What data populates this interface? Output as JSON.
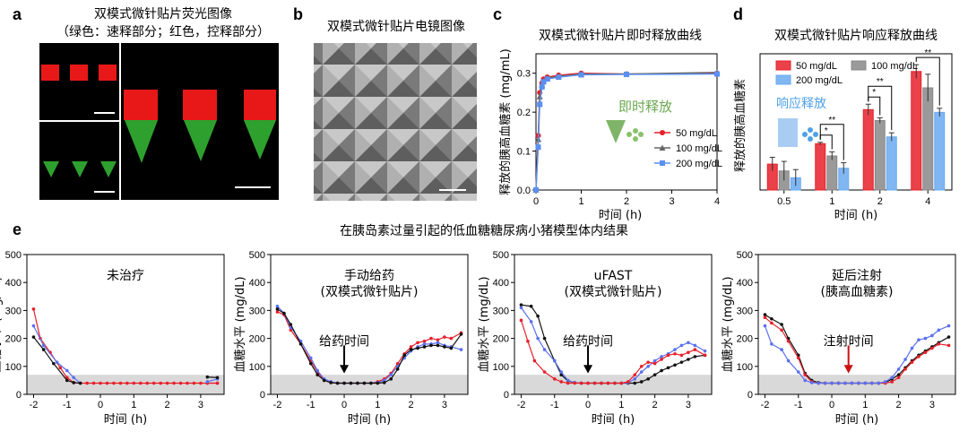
{
  "panel_a": {
    "label": "a",
    "title_line1": "双模式微针贴片荧光图像",
    "title_line2": "（绿色：速释部分；红色，控释部分）"
  },
  "panel_b": {
    "label": "b",
    "title": "双模式微针贴片电镜图像"
  },
  "panel_e": {
    "label": "e",
    "title": "在胰岛素过量引起的低血糖糖尿病小猪模型体内结果"
  },
  "colors": {
    "red": "#e8202a",
    "gray": "#666666",
    "blue": "#5b8ff0",
    "green_annotation": "#6aa84f",
    "blue_annotation": "#4ea1e8",
    "shade": "#d9d9d9",
    "arrow_red": "#cc1111"
  },
  "chart_data": [
    {
      "id": "c",
      "panel_label": "c",
      "type": "line",
      "title": "双模式微针贴片即时释放曲线",
      "xlabel": "时间 (h)",
      "ylabel": "释放的胰高血糖素 (mg/mL)",
      "xlim": [
        0,
        4
      ],
      "ylim": [
        0,
        0.35
      ],
      "xticks": [
        0,
        1,
        2,
        3,
        4
      ],
      "yticks": [
        0.0,
        0.1,
        0.2,
        0.3
      ],
      "ytick_labels": [
        "0.0",
        "0.1",
        "0.2",
        "0.3"
      ],
      "x": [
        0,
        0.05,
        0.083,
        0.133,
        0.167,
        0.25,
        0.5,
        1,
        2,
        4
      ],
      "series": [
        {
          "name": "50 mg/dL",
          "color": "#e8202a",
          "marker": "circle",
          "values": [
            0.0,
            0.14,
            0.25,
            0.275,
            0.285,
            0.29,
            0.295,
            0.3,
            0.298,
            0.3
          ]
        },
        {
          "name": "100 mg/dL",
          "color": "#666666",
          "marker": "triangle",
          "values": [
            0.0,
            0.13,
            0.24,
            0.27,
            0.28,
            0.288,
            0.292,
            0.298,
            0.298,
            0.302
          ]
        },
        {
          "name": "200 mg/dL",
          "color": "#5b8ff0",
          "marker": "square",
          "values": [
            0.0,
            0.11,
            0.22,
            0.265,
            0.278,
            0.285,
            0.29,
            0.296,
            0.297,
            0.298
          ]
        }
      ],
      "annotation": "即时释放",
      "legend": "right"
    },
    {
      "id": "d",
      "panel_label": "d",
      "type": "bar",
      "title": "双模式微针贴片响应释放曲线",
      "xlabel": "时间 (h)",
      "ylabel": "释放的胰高血糖素",
      "categories": [
        "0.5",
        "1",
        "2",
        "4"
      ],
      "ylim": [
        0,
        0.5
      ],
      "series": [
        {
          "name": "50 mg/dL",
          "color": "#e8202a",
          "values": [
            0.095,
            0.17,
            0.295,
            0.435
          ],
          "errors": [
            0.025,
            0.005,
            0.02,
            0.025
          ]
        },
        {
          "name": "100 mg/dL",
          "color": "#888888",
          "values": [
            0.07,
            0.125,
            0.255,
            0.375
          ],
          "errors": [
            0.035,
            0.015,
            0.01,
            0.05
          ]
        },
        {
          "name": "200 mg/dL",
          "color": "#6aaaf0",
          "values": [
            0.045,
            0.08,
            0.195,
            0.285
          ],
          "errors": [
            0.03,
            0.02,
            0.015,
            0.015
          ]
        }
      ],
      "significance": [
        {
          "category": "1",
          "pairs": [
            [
              "50 mg/dL",
              "100 mg/dL",
              "*"
            ],
            [
              "50 mg/dL",
              "200 mg/dL",
              "**"
            ]
          ]
        },
        {
          "category": "2",
          "pairs": [
            [
              "50 mg/dL",
              "100 mg/dL",
              "*"
            ],
            [
              "50 mg/dL",
              "200 mg/dL",
              "**"
            ]
          ]
        },
        {
          "category": "4",
          "pairs": [
            [
              "50 mg/dL",
              "200 mg/dL",
              "**"
            ]
          ]
        }
      ],
      "annotation": "响应释放",
      "legend": "top"
    },
    {
      "id": "e1",
      "type": "line",
      "title_line1": "未治疗",
      "title_line2": "",
      "arrow_label": "",
      "arrow_x": null,
      "xlabel": "时间 (h)",
      "ylabel": "血糖水平 (mg/dL)",
      "xlim": [
        -2.2,
        3.7
      ],
      "ylim": [
        0,
        500
      ],
      "xticks": [
        -2,
        -1,
        0,
        1,
        2,
        3
      ],
      "yticks": [
        0,
        100,
        200,
        300,
        400,
        500
      ],
      "shade_range": [
        0,
        70
      ],
      "series": [
        {
          "name": "red",
          "color": "#e8202a",
          "x": [
            -2.0,
            -1.8,
            -1.5,
            -1.2,
            -1.0,
            -0.8,
            -0.6,
            -0.4,
            -0.2,
            0.0,
            0.2,
            0.4,
            0.6,
            0.8,
            1.0,
            1.2,
            1.4,
            1.6,
            1.8,
            2.0,
            2.2,
            2.4,
            2.6,
            2.8,
            3.0,
            3.2,
            3.5
          ],
          "y": [
            305,
            200,
            150,
            95,
            60,
            42,
            40,
            40,
            40,
            40,
            40,
            40,
            40,
            40,
            40,
            40,
            40,
            40,
            40,
            40,
            40,
            40,
            40,
            40,
            40,
            40,
            40
          ]
        },
        {
          "name": "blue",
          "color": "#5b6ff0",
          "x": [
            -2.0,
            -1.7,
            -1.3,
            -1.0,
            -0.8,
            -0.6
          ],
          "y": [
            245,
            175,
            115,
            85,
            60,
            40
          ]
        },
        {
          "name": "black",
          "color": "#111111",
          "x": [
            -2.0,
            -1.7,
            -1.4,
            -1.0,
            -0.8,
            -0.6
          ],
          "y": [
            205,
            160,
            110,
            50,
            42,
            40
          ]
        },
        {
          "name": "red-tail",
          "color": "#e8202a",
          "x": [
            3.2,
            3.5
          ],
          "y": [
            40,
            40
          ]
        },
        {
          "name": "blue-tail",
          "color": "#5b6ff0",
          "x": [
            3.2,
            3.5
          ],
          "y": [
            45,
            55
          ]
        },
        {
          "name": "black-tail",
          "color": "#111111",
          "x": [
            3.2,
            3.5
          ],
          "y": [
            62,
            60
          ]
        }
      ]
    },
    {
      "id": "e2",
      "type": "line",
      "title_line1": "手动给药",
      "title_line2": "(双模式微针贴片)",
      "arrow_label": "给药时间",
      "arrow_x": 0,
      "xlabel": "时间 (h)",
      "ylabel": "血糖水平 (mg/dL)",
      "xlim": [
        -2.2,
        3.7
      ],
      "ylim": [
        0,
        500
      ],
      "xticks": [
        -2,
        -1,
        0,
        1,
        2,
        3
      ],
      "yticks": [
        0,
        100,
        200,
        300,
        400,
        500
      ],
      "shade_range": [
        0,
        70
      ],
      "series": [
        {
          "name": "red",
          "color": "#e8202a",
          "x": [
            -2.0,
            -1.8,
            -1.6,
            -1.3,
            -1.0,
            -0.8,
            -0.6,
            -0.4,
            -0.2,
            0.0,
            0.2,
            0.4,
            0.6,
            0.8,
            1.0,
            1.2,
            1.4,
            1.6,
            1.8,
            2.0,
            2.2,
            2.4,
            2.6,
            2.8,
            3.0,
            3.2,
            3.5
          ],
          "y": [
            295,
            285,
            230,
            180,
            120,
            80,
            50,
            42,
            40,
            40,
            40,
            40,
            40,
            40,
            45,
            55,
            75,
            110,
            145,
            170,
            185,
            190,
            200,
            195,
            205,
            200,
            220
          ]
        },
        {
          "name": "blue",
          "color": "#5b6ff0",
          "x": [
            -2.0,
            -1.8,
            -1.6,
            -1.3,
            -1.0,
            -0.8,
            -0.6,
            -0.4,
            -0.2,
            0.0,
            0.2,
            0.4,
            0.6,
            0.8,
            1.0,
            1.2,
            1.4,
            1.6,
            1.8,
            2.0,
            2.2,
            2.4,
            2.6,
            2.8,
            3.0,
            3.2,
            3.5
          ],
          "y": [
            315,
            290,
            240,
            190,
            130,
            85,
            55,
            45,
            40,
            40,
            40,
            40,
            40,
            40,
            42,
            50,
            70,
            100,
            130,
            155,
            170,
            180,
            180,
            185,
            175,
            170,
            160
          ]
        },
        {
          "name": "black",
          "color": "#111111",
          "x": [
            -2.0,
            -1.8,
            -1.6,
            -1.3,
            -1.0,
            -0.8,
            -0.6,
            -0.4,
            -0.2,
            0.0,
            0.2,
            0.4,
            0.6,
            0.8,
            1.0,
            1.2,
            1.4,
            1.6,
            1.8,
            2.0,
            2.2,
            2.4,
            2.6,
            2.8,
            3.0,
            3.2,
            3.5
          ],
          "y": [
            305,
            290,
            250,
            180,
            110,
            70,
            50,
            42,
            40,
            40,
            40,
            40,
            40,
            40,
            40,
            42,
            55,
            90,
            140,
            160,
            165,
            170,
            175,
            175,
            170,
            165,
            215
          ]
        }
      ]
    },
    {
      "id": "e3",
      "type": "line",
      "title_line1": "uFAST",
      "title_line2": "(双模式微针贴片)",
      "arrow_label": "给药时间",
      "arrow_x": 0,
      "xlabel": "时间 (h)",
      "ylabel": "血糖水平 (mg/dL)",
      "xlim": [
        -2.2,
        3.7
      ],
      "ylim": [
        0,
        500
      ],
      "xticks": [
        -2,
        -1,
        0,
        1,
        2,
        3
      ],
      "yticks": [
        0,
        100,
        200,
        300,
        400,
        500
      ],
      "shade_range": [
        0,
        70
      ],
      "series": [
        {
          "name": "black",
          "color": "#111111",
          "x": [
            -2.0,
            -1.7,
            -1.5,
            -1.3,
            -1.0,
            -0.8,
            -0.6,
            -0.4,
            -0.2,
            0.0,
            0.2,
            0.4,
            0.6,
            0.8,
            1.0,
            1.2,
            1.4,
            1.6,
            1.8,
            2.0,
            2.2,
            2.4,
            2.6,
            2.8,
            3.0,
            3.2,
            3.5
          ],
          "y": [
            320,
            315,
            280,
            200,
            120,
            70,
            48,
            42,
            40,
            40,
            40,
            40,
            40,
            40,
            40,
            40,
            40,
            45,
            55,
            70,
            85,
            95,
            105,
            115,
            125,
            135,
            140
          ]
        },
        {
          "name": "blue",
          "color": "#5b6ff0",
          "x": [
            -2.0,
            -1.7,
            -1.5,
            -1.3,
            -1.0,
            -0.8,
            -0.6,
            -0.4,
            -0.2,
            0.0,
            0.2,
            0.4,
            0.6,
            0.8,
            1.0,
            1.2,
            1.4,
            1.6,
            1.8,
            2.0,
            2.2,
            2.4,
            2.6,
            2.8,
            3.0,
            3.2,
            3.5
          ],
          "y": [
            310,
            260,
            200,
            160,
            120,
            80,
            50,
            42,
            40,
            40,
            40,
            40,
            40,
            40,
            40,
            42,
            55,
            80,
            100,
            120,
            135,
            145,
            160,
            175,
            185,
            175,
            155
          ]
        },
        {
          "name": "red",
          "color": "#e8202a",
          "x": [
            -2.0,
            -1.8,
            -1.6,
            -1.3,
            -1.0,
            -0.8,
            -0.6,
            -0.4,
            -0.2,
            0.0,
            0.2,
            0.4,
            0.6,
            0.8,
            1.0,
            1.2,
            1.4,
            1.6,
            1.8,
            2.0,
            2.2,
            2.4,
            2.6,
            2.8,
            3.0,
            3.2,
            3.5
          ],
          "y": [
            265,
            190,
            120,
            80,
            55,
            45,
            40,
            40,
            40,
            40,
            40,
            40,
            40,
            40,
            40,
            45,
            70,
            100,
            115,
            110,
            125,
            140,
            145,
            140,
            150,
            160,
            140
          ]
        }
      ]
    },
    {
      "id": "e4",
      "type": "line",
      "title_line1": "延后注射",
      "title_line2": "(胰高血糖素)",
      "arrow_label": "注射时间",
      "arrow_x": 0.5,
      "arrow_color": "#cc1111",
      "xlabel": "时间 (h)",
      "ylabel": "血糖水平 (mg/dL)",
      "xlim": [
        -2.2,
        3.7
      ],
      "ylim": [
        0,
        500
      ],
      "xticks": [
        -2,
        -1,
        0,
        1,
        2,
        3
      ],
      "yticks": [
        0,
        100,
        200,
        300,
        400,
        500
      ],
      "shade_range": [
        0,
        70
      ],
      "series": [
        {
          "name": "black",
          "color": "#111111",
          "x": [
            -2.0,
            -1.8,
            -1.5,
            -1.3,
            -1.0,
            -0.8,
            -0.6,
            -0.4,
            -0.2,
            0.0,
            0.2,
            0.4,
            0.6,
            0.8,
            1.0,
            1.2,
            1.4,
            1.6,
            1.8,
            2.0,
            2.2,
            2.4,
            2.6,
            2.8,
            3.0,
            3.2,
            3.5
          ],
          "y": [
            285,
            270,
            250,
            200,
            140,
            75,
            50,
            42,
            40,
            40,
            40,
            40,
            40,
            40,
            40,
            40,
            40,
            42,
            55,
            70,
            95,
            120,
            140,
            155,
            170,
            185,
            205
          ]
        },
        {
          "name": "red",
          "color": "#e8202a",
          "x": [
            -2.0,
            -1.8,
            -1.5,
            -1.3,
            -1.0,
            -0.8,
            -0.6,
            -0.4,
            -0.2,
            0.0,
            0.2,
            0.4,
            0.6,
            0.8,
            1.0,
            1.2,
            1.4,
            1.6,
            1.8,
            2.0,
            2.2,
            2.4,
            2.6,
            2.8,
            3.0,
            3.2,
            3.5
          ],
          "y": [
            275,
            255,
            230,
            190,
            130,
            70,
            45,
            40,
            40,
            40,
            40,
            40,
            40,
            40,
            40,
            40,
            40,
            40,
            45,
            60,
            90,
            115,
            135,
            150,
            165,
            180,
            175
          ]
        },
        {
          "name": "blue",
          "color": "#5b6ff0",
          "x": [
            -2.0,
            -1.8,
            -1.5,
            -1.3,
            -1.0,
            -0.8,
            -0.6,
            -0.4,
            -0.2,
            0.0,
            0.2,
            0.4,
            0.6,
            0.8,
            1.0,
            1.2,
            1.4,
            1.6,
            1.8,
            2.0,
            2.2,
            2.4,
            2.6,
            2.8,
            3.0,
            3.2,
            3.5
          ],
          "y": [
            245,
            180,
            160,
            120,
            80,
            50,
            42,
            40,
            40,
            40,
            40,
            40,
            40,
            40,
            40,
            40,
            40,
            45,
            60,
            90,
            125,
            165,
            195,
            200,
            210,
            230,
            245
          ]
        }
      ]
    }
  ]
}
